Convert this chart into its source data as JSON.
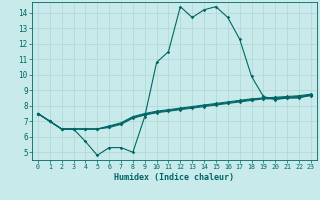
{
  "xlabel": "Humidex (Indice chaleur)",
  "bg_color": "#c8eaea",
  "grid_color": "#b0d4d4",
  "line_color": "#006666",
  "xlim": [
    -0.5,
    23.5
  ],
  "ylim": [
    4.5,
    14.7
  ],
  "xticks": [
    0,
    1,
    2,
    3,
    4,
    5,
    6,
    7,
    8,
    9,
    10,
    11,
    12,
    13,
    14,
    15,
    16,
    17,
    18,
    19,
    20,
    21,
    22,
    23
  ],
  "yticks": [
    5,
    6,
    7,
    8,
    9,
    10,
    11,
    12,
    13,
    14
  ],
  "series": [
    [
      7.5,
      7.0,
      6.5,
      6.5,
      5.7,
      4.8,
      5.3,
      5.3,
      5.0,
      7.3,
      10.8,
      11.5,
      14.4,
      13.7,
      14.2,
      14.4,
      13.7,
      12.3,
      9.9,
      8.6,
      8.4,
      8.5,
      8.5,
      8.7
    ],
    [
      7.5,
      7.0,
      6.5,
      6.5,
      6.5,
      6.5,
      6.6,
      6.8,
      7.2,
      7.4,
      7.55,
      7.65,
      7.75,
      7.85,
      7.95,
      8.05,
      8.15,
      8.25,
      8.35,
      8.45,
      8.45,
      8.5,
      8.55,
      8.65
    ],
    [
      7.5,
      7.0,
      6.5,
      6.5,
      6.5,
      6.5,
      6.65,
      6.85,
      7.25,
      7.45,
      7.6,
      7.7,
      7.8,
      7.9,
      8.0,
      8.1,
      8.2,
      8.3,
      8.4,
      8.5,
      8.5,
      8.55,
      8.6,
      8.7
    ],
    [
      7.5,
      7.0,
      6.5,
      6.5,
      6.5,
      6.5,
      6.7,
      6.9,
      7.3,
      7.5,
      7.65,
      7.75,
      7.85,
      7.95,
      8.05,
      8.15,
      8.25,
      8.35,
      8.45,
      8.5,
      8.55,
      8.6,
      8.65,
      8.75
    ]
  ]
}
